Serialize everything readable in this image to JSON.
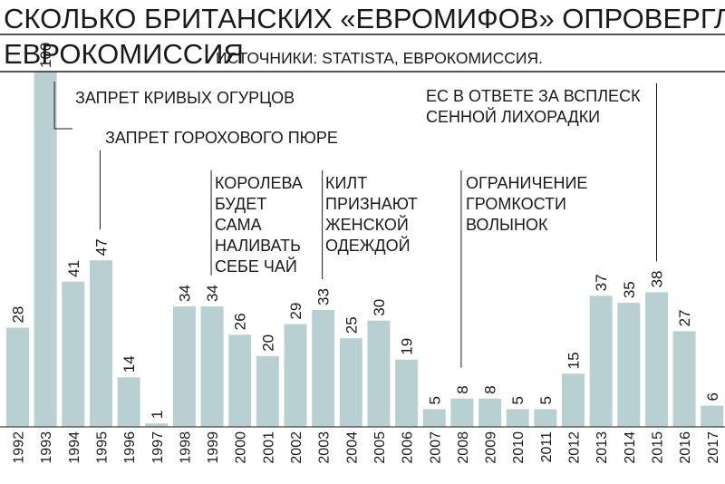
{
  "header": {
    "title_line1": "СКОЛЬКО БРИТАНСКИХ «ЕВРОМИФОВ» ОПРОВЕРГЛА",
    "title_line2": "ЕВРОКОМИССИЯ",
    "source": "ИСТОЧНИКИ: STATISTA, ЕВРОКОМИССИЯ."
  },
  "colors": {
    "bar": "#b9d0d2",
    "text": "#1a1a1a",
    "background": "#ffffff"
  },
  "chart_data": {
    "type": "bar",
    "title": "СКОЛЬКО БРИТАНСКИХ «ЕВРОМИФОВ» ОПРОВЕРГЛА ЕВРОКОМИССИЯ",
    "xlabel": "",
    "ylabel": "",
    "grid": false,
    "legend": "none",
    "ylim": [
      0,
      100
    ],
    "categories": [
      "1992",
      "1993",
      "1994",
      "1995",
      "1996",
      "1997",
      "1998",
      "1999",
      "2000",
      "2001",
      "2002",
      "2003",
      "2004",
      "2005",
      "2006",
      "2007",
      "2008",
      "2009",
      "2010",
      "2011",
      "2012",
      "2013",
      "2014",
      "2015",
      "2016",
      "2017"
    ],
    "values": [
      28,
      100,
      41,
      47,
      14,
      1,
      34,
      34,
      26,
      20,
      29,
      33,
      25,
      30,
      19,
      5,
      8,
      8,
      5,
      5,
      15,
      37,
      35,
      38,
      27,
      6
    ],
    "annotations": [
      {
        "category": "1993",
        "lines": [
          "ЗАПРЕТ КРИВЫХ ОГУРЦОВ"
        ]
      },
      {
        "category": "1995",
        "lines": [
          "ЗАПРЕТ ГОРОХОВОГО ПЮРЕ"
        ]
      },
      {
        "category": "1999",
        "lines": [
          "КОРОЛЕВА",
          "БУДЕТ",
          "САМА",
          "НАЛИВАТЬ",
          "СЕБЕ ЧАЙ"
        ]
      },
      {
        "category": "2003",
        "lines": [
          "КИЛТ",
          "ПРИЗНАЮТ",
          "ЖЕНСКОЙ",
          "ОДЕЖДОЙ"
        ]
      },
      {
        "category": "2008",
        "lines": [
          "ОГРАНИЧЕНИЕ",
          "ГРОМКОСТИ",
          "ВОЛЫНОК"
        ]
      },
      {
        "category": "2015",
        "lines": [
          "ЕС В ОТВЕТЕ ЗА ВСПЛЕСК",
          "СЕННОЙ ЛИХОРАДКИ"
        ]
      }
    ]
  }
}
